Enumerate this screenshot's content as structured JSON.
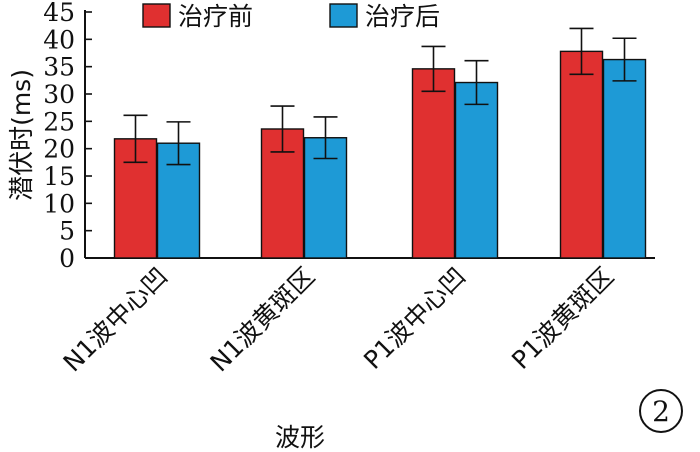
{
  "chart_data": {
    "type": "bar",
    "categories": [
      "N1波中心凹",
      "N1波黄斑区",
      "P1波中心凹",
      "P1波黄斑区"
    ],
    "series": [
      {
        "name": "治疗前",
        "values": [
          21.8,
          23.6,
          34.6,
          37.8
        ],
        "errors": [
          4.3,
          4.2,
          4.1,
          4.2
        ],
        "color": "#e03030"
      },
      {
        "name": "治疗后",
        "values": [
          21.0,
          22.0,
          32.1,
          36.3
        ],
        "errors": [
          3.9,
          3.8,
          4.0,
          3.9
        ],
        "color": "#1e9ad6"
      }
    ],
    "xlabel": "波形",
    "ylabel": "潜伏时(ms)",
    "ylim": [
      0,
      45
    ],
    "yticks": [
      0,
      5,
      10,
      15,
      20,
      25,
      30,
      35,
      40,
      45
    ],
    "grid": false,
    "legend": "top",
    "annotation": "2"
  }
}
